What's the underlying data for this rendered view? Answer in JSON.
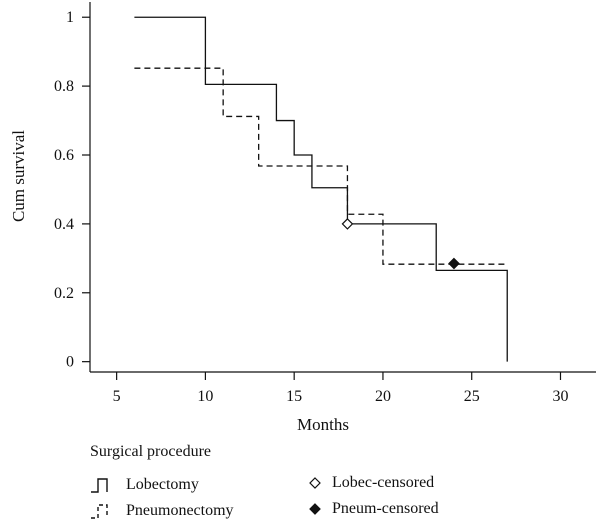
{
  "chart_data": {
    "type": "line",
    "title": "",
    "xlabel": "Months",
    "ylabel": "Cum survival",
    "xlim": [
      3.5,
      32
    ],
    "ylim": [
      -0.03,
      1.05
    ],
    "xticks": [
      5,
      10,
      15,
      20,
      25,
      30
    ],
    "yticks": [
      0,
      0.2,
      0.4,
      0.6,
      0.8,
      1
    ],
    "yticklabels": [
      "0",
      "0.2",
      "0.4",
      "0.6",
      "0.8",
      "1"
    ],
    "grid": false,
    "legend_title": "Surgical procedure",
    "legend_position": "bottom",
    "series": [
      {
        "name": "Lobectomy",
        "style": "solid",
        "step": true,
        "x": [
          6,
          10,
          14,
          15,
          16,
          18,
          23,
          27,
          27
        ],
        "y": [
          1.0,
          0.805,
          0.7,
          0.6,
          0.505,
          0.4,
          0.265,
          0.265,
          0.0
        ]
      },
      {
        "name": "Pneumonectomy",
        "style": "dashed",
        "step": true,
        "x": [
          6,
          11,
          13,
          18,
          20,
          27
        ],
        "y": [
          0.852,
          0.712,
          0.568,
          0.428,
          0.283,
          0.283
        ]
      }
    ],
    "censored": [
      {
        "name": "Lobec-censored",
        "marker": "diamond-open",
        "x": 18,
        "y": 0.4
      },
      {
        "name": "Pneum-censored",
        "marker": "diamond-filled",
        "x": 24,
        "y": 0.285
      }
    ]
  },
  "legend": {
    "title": "Surgical procedure",
    "items": [
      {
        "label": "Lobectomy"
      },
      {
        "label": "Pneumonectomy"
      },
      {
        "label": "Lobec-censored"
      },
      {
        "label": "Pneum-censored"
      }
    ]
  }
}
